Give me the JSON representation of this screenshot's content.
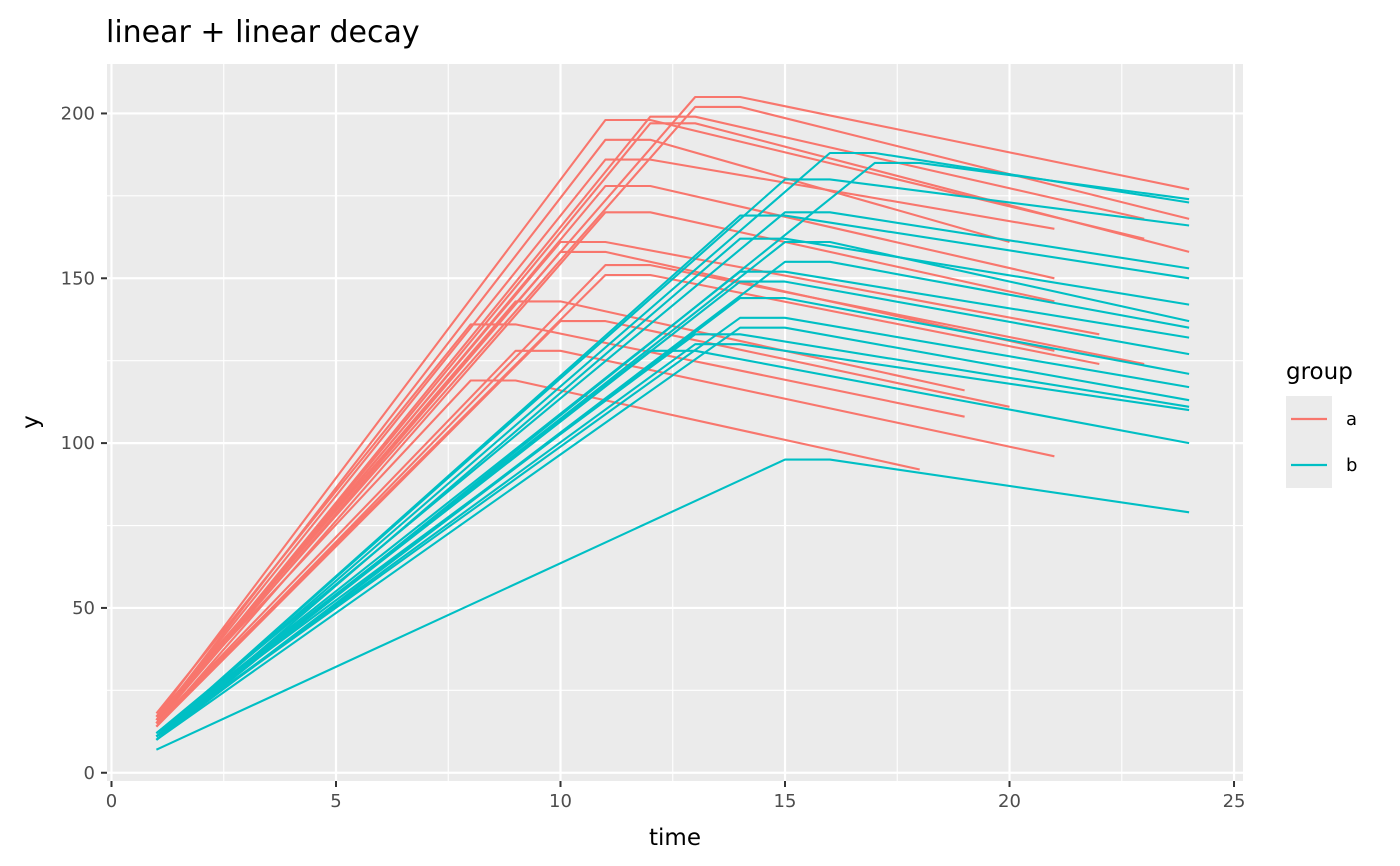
{
  "chart_data": {
    "type": "line",
    "title": "linear + linear decay",
    "xlabel": "time",
    "ylabel": "y",
    "xlim": [
      -0.1,
      25.2
    ],
    "ylim": [
      -2.5,
      215
    ],
    "x_ticks": [
      0,
      5,
      10,
      15,
      20,
      25
    ],
    "y_ticks": [
      0,
      50,
      100,
      150,
      200
    ],
    "grid": true,
    "legend": {
      "title": "group",
      "position": "right",
      "entries": [
        {
          "label": "a",
          "color": "#F8766D"
        },
        {
          "label": "b",
          "color": "#00BFC4"
        }
      ]
    },
    "series": [
      {
        "group": "a",
        "x": [
          1,
          13,
          14,
          24
        ],
        "y": [
          17,
          205,
          205,
          177
        ]
      },
      {
        "group": "a",
        "x": [
          1,
          13,
          14,
          24
        ],
        "y": [
          16,
          202,
          202,
          168
        ]
      },
      {
        "group": "a",
        "x": [
          1,
          12,
          13,
          23
        ],
        "y": [
          15,
          199,
          199,
          168
        ]
      },
      {
        "group": "a",
        "x": [
          1,
          11,
          12,
          23
        ],
        "y": [
          17,
          198,
          198,
          162
        ]
      },
      {
        "group": "a",
        "x": [
          1,
          12,
          13,
          24
        ],
        "y": [
          15,
          197,
          197,
          158
        ]
      },
      {
        "group": "a",
        "x": [
          1,
          11,
          12,
          20
        ],
        "y": [
          16,
          192,
          192,
          161
        ]
      },
      {
        "group": "a",
        "x": [
          1,
          11,
          12,
          21
        ],
        "y": [
          16,
          186,
          186,
          165
        ]
      },
      {
        "group": "a",
        "x": [
          1,
          11,
          12,
          21
        ],
        "y": [
          15,
          178,
          178,
          150
        ]
      },
      {
        "group": "a",
        "x": [
          1,
          11,
          12,
          21
        ],
        "y": [
          14,
          170,
          170,
          143
        ]
      },
      {
        "group": "a",
        "x": [
          1,
          10,
          11,
          22
        ],
        "y": [
          16,
          161,
          161,
          133
        ]
      },
      {
        "group": "a",
        "x": [
          1,
          10,
          11,
          21
        ],
        "y": [
          15,
          158,
          158,
          128
        ]
      },
      {
        "group": "a",
        "x": [
          1,
          11,
          12,
          23
        ],
        "y": [
          14,
          154,
          154,
          124
        ]
      },
      {
        "group": "a",
        "x": [
          1,
          11,
          12,
          22
        ],
        "y": [
          15,
          151,
          151,
          124
        ]
      },
      {
        "group": "a",
        "x": [
          1,
          9,
          10,
          19
        ],
        "y": [
          16,
          143,
          143,
          116
        ]
      },
      {
        "group": "a",
        "x": [
          1,
          10,
          11,
          20
        ],
        "y": [
          14,
          137,
          137,
          111
        ]
      },
      {
        "group": "a",
        "x": [
          1,
          8,
          9,
          19
        ],
        "y": [
          18,
          136,
          136,
          108
        ]
      },
      {
        "group": "a",
        "x": [
          1,
          9,
          10,
          21
        ],
        "y": [
          15,
          128,
          128,
          96
        ]
      },
      {
        "group": "a",
        "x": [
          1,
          8,
          9,
          18
        ],
        "y": [
          17,
          119,
          119,
          92
        ]
      },
      {
        "group": "b",
        "x": [
          1,
          16,
          17,
          24
        ],
        "y": [
          11,
          188,
          188,
          173
        ]
      },
      {
        "group": "b",
        "x": [
          1,
          17,
          18,
          24
        ],
        "y": [
          10,
          185,
          185,
          174
        ]
      },
      {
        "group": "b",
        "x": [
          1,
          15,
          16,
          24
        ],
        "y": [
          11,
          180,
          180,
          166
        ]
      },
      {
        "group": "b",
        "x": [
          1,
          15,
          16,
          24
        ],
        "y": [
          12,
          170,
          170,
          153
        ]
      },
      {
        "group": "b",
        "x": [
          1,
          14,
          15,
          24
        ],
        "y": [
          11,
          169,
          169,
          150
        ]
      },
      {
        "group": "b",
        "x": [
          1,
          14,
          15,
          24
        ],
        "y": [
          10,
          162,
          162,
          142
        ]
      },
      {
        "group": "b",
        "x": [
          1,
          15,
          16,
          24
        ],
        "y": [
          11,
          161,
          161,
          137
        ]
      },
      {
        "group": "b",
        "x": [
          1,
          15,
          16,
          24
        ],
        "y": [
          10,
          155,
          155,
          135
        ]
      },
      {
        "group": "b",
        "x": [
          1,
          14,
          15,
          24
        ],
        "y": [
          12,
          152,
          152,
          132
        ]
      },
      {
        "group": "b",
        "x": [
          1,
          14,
          15,
          24
        ],
        "y": [
          11,
          149,
          149,
          127
        ]
      },
      {
        "group": "b",
        "x": [
          1,
          14,
          15,
          24
        ],
        "y": [
          10,
          144,
          144,
          121
        ]
      },
      {
        "group": "b",
        "x": [
          1,
          14,
          15,
          24
        ],
        "y": [
          11,
          138,
          138,
          117
        ]
      },
      {
        "group": "b",
        "x": [
          1,
          14,
          15,
          24
        ],
        "y": [
          10,
          135,
          135,
          113
        ]
      },
      {
        "group": "b",
        "x": [
          1,
          13,
          14,
          24
        ],
        "y": [
          12,
          133,
          133,
          111
        ]
      },
      {
        "group": "b",
        "x": [
          1,
          13,
          14,
          24
        ],
        "y": [
          11,
          130,
          130,
          110
        ]
      },
      {
        "group": "b",
        "x": [
          1,
          12,
          13,
          24
        ],
        "y": [
          12,
          128,
          128,
          100
        ]
      },
      {
        "group": "b",
        "x": [
          1,
          15,
          16,
          24
        ],
        "y": [
          7,
          95,
          95,
          79
        ]
      }
    ]
  }
}
